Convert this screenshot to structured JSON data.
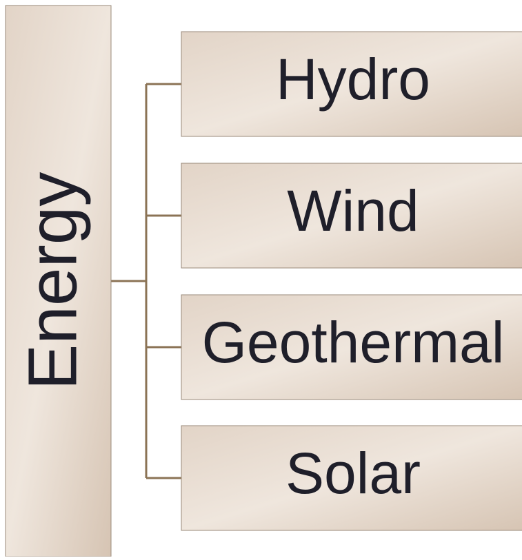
{
  "root": {
    "label": "Energy"
  },
  "nodes": [
    {
      "label": "Hydro"
    },
    {
      "label": "Wind"
    },
    {
      "label": "Geothermal"
    },
    {
      "label": "Solar"
    }
  ]
}
